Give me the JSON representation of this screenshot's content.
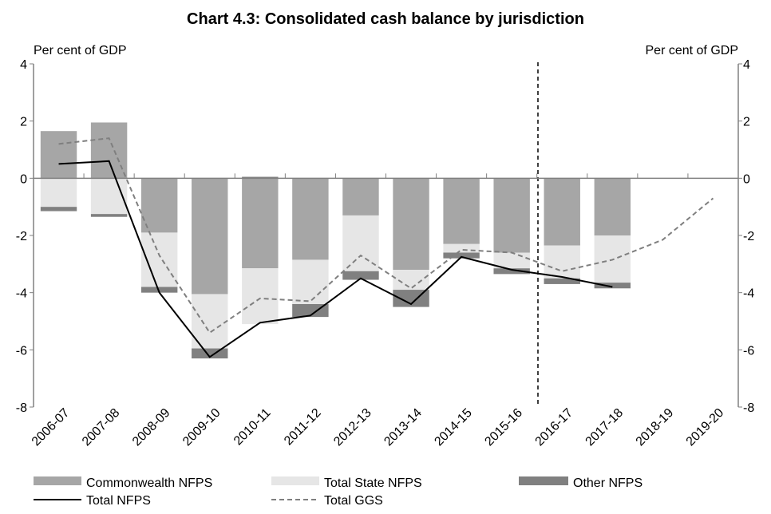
{
  "chart_data": {
    "type": "bar",
    "title": "Chart 4.3: Consolidated cash balance by jurisdiction",
    "ylabel": "Per cent of GDP",
    "y2label": "Per cent of GDP",
    "categories": [
      "2006-07",
      "2007-08",
      "2008-09",
      "2009-10",
      "2010-11",
      "2011-12",
      "2012-13",
      "2013-14",
      "2014-15",
      "2015-16",
      "2016-17",
      "2017-18",
      "2018-19",
      "2019-20"
    ],
    "series": [
      {
        "name": "Commonwealth NFPS",
        "type": "bar",
        "color": "#a6a6a6",
        "values": [
          1.65,
          1.95,
          -1.9,
          -4.05,
          -3.15,
          -2.85,
          -1.3,
          -3.2,
          -2.3,
          -2.6,
          -2.35,
          -2.0,
          null,
          null
        ]
      },
      {
        "name": "Total State NFPS",
        "type": "bar",
        "color": "#e6e6e6",
        "values": [
          -1.0,
          -1.25,
          -1.9,
          -1.9,
          -1.95,
          -1.55,
          -1.95,
          -0.7,
          -0.3,
          -0.55,
          -1.15,
          -1.65,
          null,
          null
        ]
      },
      {
        "name": "Other NFPS",
        "type": "bar",
        "color": "#808080",
        "values": [
          -0.15,
          -0.1,
          -0.2,
          -0.35,
          0.05,
          -0.45,
          -0.3,
          -0.6,
          -0.2,
          -0.2,
          -0.2,
          -0.2,
          null,
          null
        ]
      },
      {
        "name": "Total NFPS",
        "type": "line",
        "color": "#000000",
        "values": [
          0.5,
          0.6,
          -4.0,
          -6.25,
          -5.05,
          -4.8,
          -3.5,
          -4.4,
          -2.75,
          -3.2,
          -3.45,
          -3.8,
          null,
          null
        ]
      },
      {
        "name": "Total GGS",
        "type": "line",
        "dashed": true,
        "color": "#7f7f7f",
        "values": [
          1.2,
          1.4,
          -2.7,
          -5.4,
          -4.2,
          -4.3,
          -2.7,
          -3.85,
          -2.5,
          -2.6,
          -3.25,
          -2.85,
          -2.15,
          -0.7
        ]
      }
    ],
    "ylim": [
      -8,
      4
    ],
    "yticks": [
      -8,
      -6,
      -4,
      -2,
      0,
      2,
      4
    ]
  }
}
